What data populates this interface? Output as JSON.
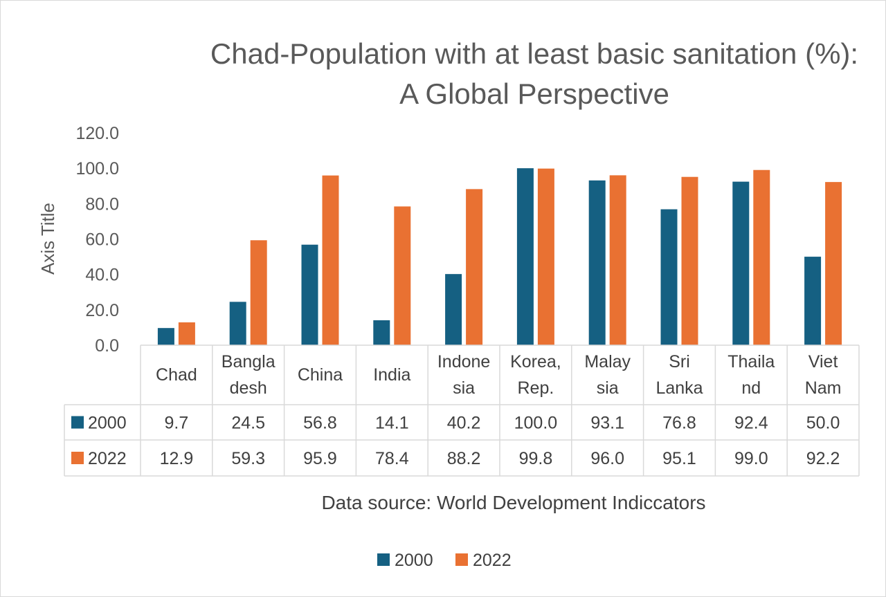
{
  "chart_data": {
    "type": "bar",
    "title_lines": [
      "Chad-Population with at least basic sanitation (%):",
      "A Global Perspective"
    ],
    "ylabel": "Axis Title",
    "ylim": [
      0,
      120
    ],
    "ytick_labels": [
      "0.0",
      "20.0",
      "40.0",
      "60.0",
      "80.0",
      "100.0",
      "120.0"
    ],
    "categories": [
      "Chad",
      "Bangladesh",
      "China",
      "India",
      "Indonesia",
      "Korea, Rep.",
      "Malaysia",
      "Sri Lanka",
      "Thailand",
      "Viet Nam"
    ],
    "category_label_lines": [
      [
        "Chad"
      ],
      [
        "Bangla",
        "desh"
      ],
      [
        "China"
      ],
      [
        "India"
      ],
      [
        "Indone",
        "sia"
      ],
      [
        "Korea,",
        "Rep."
      ],
      [
        "Malay",
        "sia"
      ],
      [
        "Sri",
        "Lanka"
      ],
      [
        "Thaila",
        "nd"
      ],
      [
        "Viet",
        "Nam"
      ]
    ],
    "series": [
      {
        "name": "2000",
        "color": "#156082",
        "values": [
          9.7,
          24.5,
          56.8,
          14.1,
          40.2,
          100.0,
          93.1,
          76.8,
          92.4,
          50.0
        ]
      },
      {
        "name": "2022",
        "color": "#E97132",
        "values": [
          12.9,
          59.3,
          95.9,
          78.4,
          88.2,
          99.8,
          96.0,
          95.1,
          99.0,
          92.2
        ]
      }
    ],
    "data_table": true,
    "gridlines": false,
    "legend_position": "bottom",
    "note": "Data source: World Development Indiccators"
  }
}
